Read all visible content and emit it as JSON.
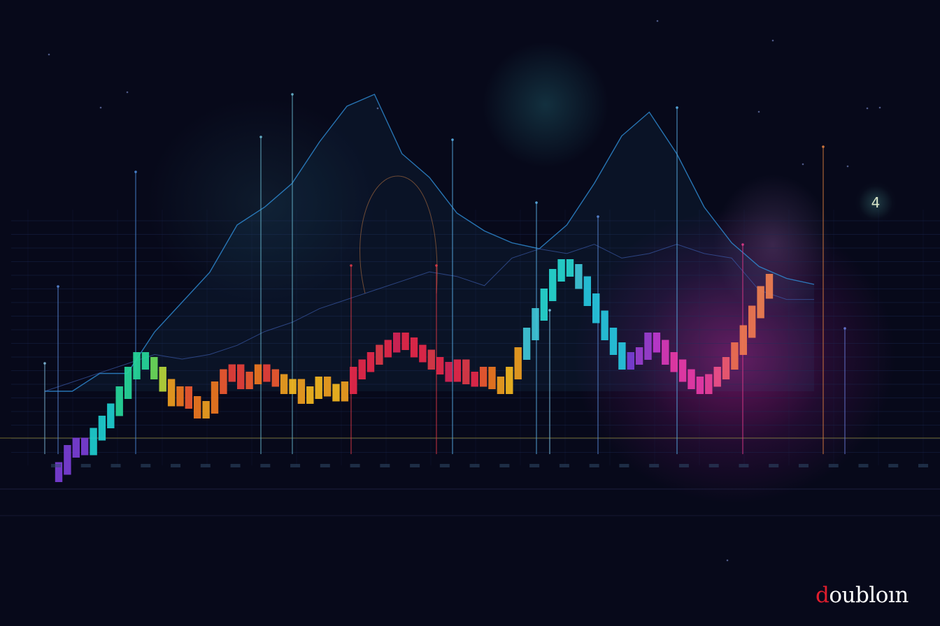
{
  "chart_data": {
    "type": "candlestick",
    "title": "",
    "xlabel": "",
    "ylabel": "",
    "grid": true,
    "x_tick_labels": [
      "",
      "",
      "",
      "",
      "",
      "",
      "",
      "",
      "",
      "",
      "",
      "",
      "",
      "",
      "",
      "",
      "",
      "",
      "",
      "",
      "",
      "",
      "",
      "",
      "",
      "",
      "",
      "",
      "",
      ""
    ],
    "price_series": [
      7,
      14,
      17,
      15,
      21,
      26,
      31,
      38,
      46,
      52,
      50,
      46,
      41,
      35,
      38,
      34,
      30,
      32,
      40,
      45,
      47,
      42,
      44,
      47,
      45,
      43,
      40,
      41,
      36,
      38,
      42,
      39,
      37,
      40,
      46,
      49,
      52,
      55,
      57,
      60,
      58,
      55,
      53,
      50,
      48,
      45,
      49,
      44,
      43,
      46,
      42,
      40,
      46,
      54,
      62,
      70,
      78,
      86,
      90,
      88,
      83,
      76,
      69,
      62,
      56,
      50,
      52,
      54,
      60,
      57,
      52,
      49,
      45,
      42,
      40,
      43,
      46,
      50,
      56,
      63,
      71,
      79,
      84
    ],
    "candle_colors": [
      "#7b3fd6",
      "#7b3fd6",
      "#7b3fd6",
      "#7b3fd6",
      "#1ecfcf",
      "#1ecfcf",
      "#1ecfcf",
      "#27d89a",
      "#27d89a",
      "#27d89a",
      "#27d89a",
      "#6ddc5a",
      "#b8d83a",
      "#f0a020",
      "#f07820",
      "#f05a30",
      "#f07820",
      "#f0a020",
      "#f07820",
      "#f05a30",
      "#e8403a",
      "#e8403a",
      "#f05a30",
      "#f07820",
      "#e8403a",
      "#f05a30",
      "#f0a020",
      "#f5b820",
      "#f0a020",
      "#f5b820",
      "#f5b820",
      "#f0a020",
      "#f5b820",
      "#f0a020",
      "#e8284a",
      "#e8284a",
      "#e8284a",
      "#e03a48",
      "#e8284a",
      "#d82456",
      "#e8284a",
      "#e8284a",
      "#e8284a",
      "#e03a48",
      "#e8284a",
      "#d82456",
      "#e8284a",
      "#e03a48",
      "#e8284a",
      "#f05a30",
      "#f07820",
      "#f0a020",
      "#f5b820",
      "#f0a020",
      "#40c8d8",
      "#40c8d8",
      "#27d8d0",
      "#27d8d0",
      "#27d8d0",
      "#27d8d0",
      "#40c8d8",
      "#27c8e0",
      "#27c8e0",
      "#27c8e0",
      "#27c8e0",
      "#27c8e0",
      "#7b3fd6",
      "#9b3fd0",
      "#9b3fd0",
      "#c03ad0",
      "#d83ab8",
      "#e83aa8",
      "#e83aa8",
      "#e83aa8",
      "#e83aa8",
      "#e8409a",
      "#f0508a",
      "#f05a70",
      "#f07050",
      "#f07850",
      "#f07850",
      "#f08050",
      "#f08050"
    ],
    "overlay_line_upper": [
      0,
      0,
      6,
      6,
      20,
      30,
      40,
      56,
      62,
      70,
      84,
      96,
      100,
      80,
      72,
      60,
      54,
      50,
      48,
      56,
      70,
      86,
      94,
      80,
      62,
      50,
      42,
      38,
      36
    ],
    "overlay_line_lower": [
      0,
      4,
      8,
      12,
      16,
      14,
      16,
      20,
      26,
      30,
      36,
      40,
      44,
      48,
      52,
      50,
      46,
      58,
      62,
      60,
      64,
      58,
      60,
      64,
      60,
      58,
      44,
      40,
      40
    ]
  },
  "corner_badge": {
    "label": "4"
  },
  "brand": {
    "lead": "d",
    "rest": "oubloın"
  },
  "colors": {
    "background": "#07091a",
    "brand_accent": "#e01d2d",
    "grid": "#1d2a55"
  }
}
